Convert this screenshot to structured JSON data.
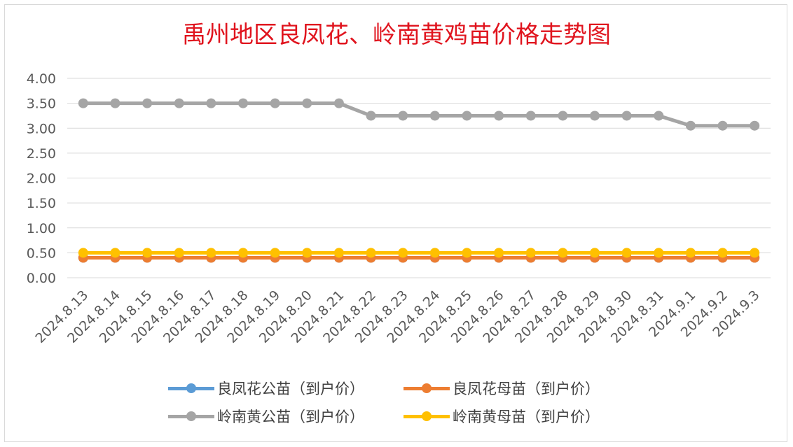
{
  "chart_data": {
    "type": "line",
    "title": "禹州地区良凤花、岭南黄鸡苗价格走势图",
    "categories": [
      "2024.8.13",
      "2024.8.14",
      "2024.8.15",
      "2024.8.16",
      "2024.8.17",
      "2024.8.18",
      "2024.8.19",
      "2024.8.20",
      "2024.8.21",
      "2024.8.22",
      "2024.8.23",
      "2024.8.24",
      "2024.8.25",
      "2024.8.26",
      "2024.8.27",
      "2024.8.28",
      "2024.8.29",
      "2024.8.30",
      "2024.8.31",
      "2024.9.1",
      "2024.9.2",
      "2024.9.3"
    ],
    "yticks": [
      "0.00",
      "0.50",
      "1.00",
      "1.50",
      "2.00",
      "2.50",
      "3.00",
      "3.50",
      "4.00"
    ],
    "ylim": [
      0,
      4
    ],
    "grid": true,
    "legend_position": "bottom",
    "series": [
      {
        "name": "良凤花公苗（到户价）",
        "color": "#5b9bd5",
        "values": [
          0.4,
          0.4,
          0.4,
          0.4,
          0.4,
          0.4,
          0.4,
          0.4,
          0.4,
          0.4,
          0.4,
          0.4,
          0.4,
          0.4,
          0.4,
          0.4,
          0.4,
          0.4,
          0.4,
          0.4,
          0.4,
          0.4
        ]
      },
      {
        "name": "良凤花母苗（到户价）",
        "color": "#ed7d31",
        "values": [
          0.4,
          0.4,
          0.4,
          0.4,
          0.4,
          0.4,
          0.4,
          0.4,
          0.4,
          0.4,
          0.4,
          0.4,
          0.4,
          0.4,
          0.4,
          0.4,
          0.4,
          0.4,
          0.4,
          0.4,
          0.4,
          0.4
        ]
      },
      {
        "name": "岭南黄公苗（到户价）",
        "color": "#a5a5a5",
        "values": [
          3.5,
          3.5,
          3.5,
          3.5,
          3.5,
          3.5,
          3.5,
          3.5,
          3.5,
          3.25,
          3.25,
          3.25,
          3.25,
          3.25,
          3.25,
          3.25,
          3.25,
          3.25,
          3.25,
          3.05,
          3.05,
          3.05
        ]
      },
      {
        "name": "岭南黄母苗（到户价）",
        "color": "#ffc000",
        "values": [
          0.5,
          0.5,
          0.5,
          0.5,
          0.5,
          0.5,
          0.5,
          0.5,
          0.5,
          0.5,
          0.5,
          0.5,
          0.5,
          0.5,
          0.5,
          0.5,
          0.5,
          0.5,
          0.5,
          0.5,
          0.5,
          0.5
        ]
      }
    ]
  }
}
